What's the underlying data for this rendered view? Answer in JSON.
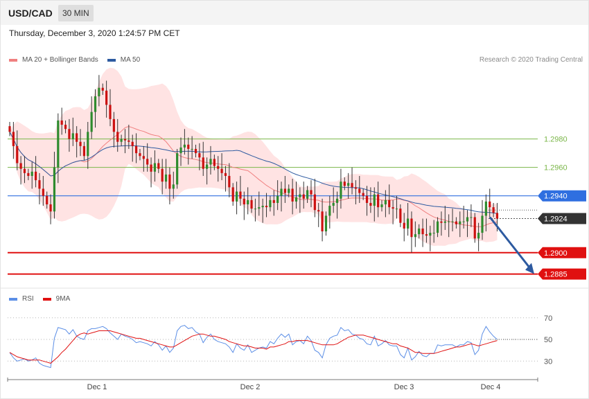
{
  "header": {
    "symbol": "USD/CAD",
    "timeframe": "30 MIN",
    "datetime": "Thursday, December 3, 2020 1:24:57 PM CET"
  },
  "legend": {
    "ma20": "MA 20 + Bollinger Bands",
    "ma50": "MA 50",
    "credit": "Research © 2020 Trading Central",
    "colors": {
      "ma20": "#f08080",
      "ma50": "#2d5aa0",
      "bands": "#ffe3e3"
    }
  },
  "rsi_legend": {
    "rsi": "RSI",
    "ma9": "9MA",
    "colors": {
      "rsi": "#5b8ee6",
      "ma9": "#e01010"
    }
  },
  "chart_data": [
    {
      "type": "candlestick",
      "title": "",
      "ylim": [
        1.2877,
        1.303
      ],
      "x_ticks": [
        "Dec 1",
        "Dec 2",
        "Dec 3",
        "Dec 4"
      ],
      "levels": [
        {
          "value": 1.298,
          "label": "1.2980",
          "kind": "resistance",
          "color": "#7ab648"
        },
        {
          "value": 1.296,
          "label": "1.2960",
          "kind": "resistance",
          "color": "#7ab648"
        },
        {
          "value": 1.294,
          "label": "1.2940",
          "kind": "pivot",
          "color": "#2f6fe0"
        },
        {
          "value": 1.2924,
          "label": "1.2924",
          "kind": "last_price",
          "color": "#333333"
        },
        {
          "value": 1.29,
          "label": "1.2900",
          "kind": "support",
          "color": "#e01010"
        },
        {
          "value": 1.2885,
          "label": "1.2885",
          "kind": "support",
          "color": "#e01010"
        }
      ],
      "projection": {
        "from": 1.2925,
        "to": 1.2885,
        "color": "#2d5aa0"
      },
      "close_series": [
        1.2985,
        1.2975,
        1.2963,
        1.2959,
        1.2956,
        1.2954,
        1.2957,
        1.2951,
        1.2945,
        1.294,
        1.2934,
        1.2929,
        1.296,
        1.2993,
        1.299,
        1.2987,
        1.298,
        1.2984,
        1.2978,
        1.2975,
        1.2968,
        1.2985,
        1.2999,
        1.301,
        1.3016,
        1.3014,
        1.3004,
        1.2994,
        1.2985,
        1.2978,
        1.298,
        1.2979,
        1.2978,
        1.2975,
        1.297,
        1.2968,
        1.2966,
        1.2962,
        1.2957,
        1.2963,
        1.2959,
        1.295,
        1.2955,
        1.2945,
        1.2948,
        1.297,
        1.2974,
        1.2976,
        1.2973,
        1.2973,
        1.297,
        1.2967,
        1.2959,
        1.2962,
        1.2966,
        1.2961,
        1.2959,
        1.2956,
        1.2954,
        1.2946,
        1.2936,
        1.2943,
        1.2938,
        1.2934,
        1.2937,
        1.2931,
        1.2931,
        1.2932,
        1.2933,
        1.2932,
        1.2937,
        1.2935,
        1.294,
        1.2945,
        1.2942,
        1.2945,
        1.2936,
        1.2939,
        1.2941,
        1.2938,
        1.2944,
        1.2941,
        1.293,
        1.2929,
        1.2915,
        1.2926,
        1.2933,
        1.2935,
        1.2938,
        1.295,
        1.2947,
        1.2949,
        1.2946,
        1.2945,
        1.2942,
        1.294,
        1.2935,
        1.2933,
        1.2941,
        1.2932,
        1.2934,
        1.2937,
        1.2932,
        1.2931,
        1.2931,
        1.2921,
        1.2917,
        1.2924,
        1.2911,
        1.2913,
        1.2917,
        1.2913,
        1.2912,
        1.2914,
        1.2914,
        1.2922,
        1.2921,
        1.2922,
        1.2922,
        1.2922,
        1.292,
        1.2922,
        1.2922,
        1.2925,
        1.2925,
        1.291,
        1.2914,
        1.2926,
        1.2936,
        1.2932,
        1.2928,
        1.2924
      ],
      "rsi": {
        "ylim": [
          18,
          82
        ],
        "ticks": [
          30,
          50,
          70
        ],
        "values": [
          38,
          33,
          30,
          31,
          32,
          30,
          31,
          33,
          28,
          26,
          25,
          24,
          51,
          61,
          60,
          59,
          55,
          59,
          53,
          51,
          50,
          58,
          60,
          60,
          61,
          62,
          60,
          56,
          53,
          50,
          55,
          53,
          52,
          50,
          47,
          48,
          47,
          46,
          44,
          48,
          45,
          40,
          44,
          38,
          42,
          58,
          62,
          63,
          60,
          61,
          57,
          55,
          47,
          52,
          55,
          50,
          48,
          47,
          46,
          43,
          38,
          46,
          42,
          40,
          45,
          38,
          40,
          42,
          43,
          42,
          48,
          46,
          51,
          55,
          52,
          55,
          45,
          48,
          49,
          46,
          53,
          49,
          40,
          38,
          33,
          45,
          51,
          53,
          54,
          61,
          58,
          59,
          55,
          54,
          51,
          50,
          46,
          45,
          53,
          44,
          46,
          49,
          45,
          44,
          44,
          36,
          33,
          42,
          31,
          34,
          39,
          35,
          34,
          37,
          37,
          45,
          44,
          45,
          45,
          45,
          43,
          45,
          45,
          48,
          47,
          36,
          40,
          55,
          62,
          57,
          53,
          50
        ],
        "ma9": [
          38,
          36,
          34,
          33,
          32,
          31,
          31,
          31,
          31,
          30,
          29,
          28,
          31,
          34,
          38,
          41,
          45,
          49,
          53,
          55,
          56,
          55,
          56,
          57,
          58,
          58,
          58,
          58,
          57,
          56,
          55,
          54,
          53,
          52,
          51,
          51,
          50,
          49,
          48,
          47,
          46,
          45,
          44,
          43,
          43,
          45,
          47,
          49,
          51,
          53,
          54,
          55,
          55,
          54,
          53,
          53,
          52,
          51,
          50,
          48,
          47,
          46,
          45,
          44,
          44,
          43,
          42,
          42,
          42,
          41,
          43,
          43,
          44,
          45,
          46,
          48,
          48,
          49,
          49,
          49,
          49,
          48,
          47,
          46,
          45,
          45,
          45,
          45,
          46,
          48,
          50,
          52,
          53,
          54,
          54,
          54,
          53,
          52,
          51,
          50,
          49,
          48,
          47,
          46,
          46,
          44,
          43,
          42,
          40,
          38,
          38,
          37,
          37,
          37,
          37,
          38,
          39,
          40,
          41,
          42,
          43,
          43,
          44,
          45,
          46,
          45,
          44,
          45,
          46,
          47,
          48,
          49
        ]
      }
    }
  ]
}
